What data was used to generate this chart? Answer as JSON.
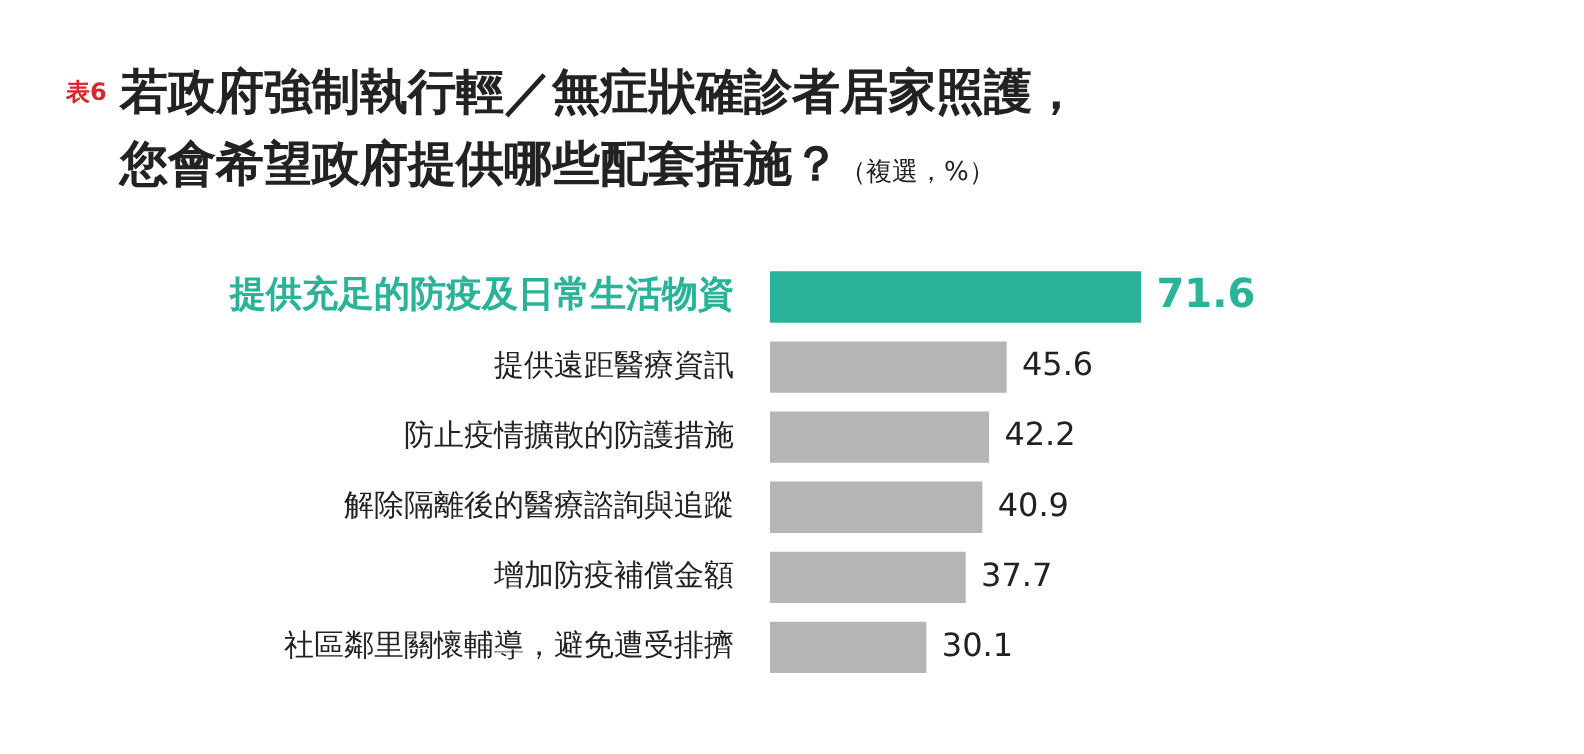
{
  "chart_data": {
    "type": "bar",
    "orientation": "horizontal",
    "title": "若政府強制執行輕／無症狀確診者居家照護，您會希望政府提供哪些配套措施？",
    "subtitle": "（複選，%）",
    "annotations": [
      "表6"
    ],
    "categories": [
      "提供充足的防疫及日常生活物資",
      "提供遠距醫療資訊",
      "防止疫情擴散的防護措施",
      "解除隔離後的醫療諮詢與追蹤",
      "增加防疫補償金額",
      "社區鄰里關懷輔導，避免遭受排擠"
    ],
    "values": [
      71.6,
      45.6,
      42.2,
      40.9,
      37.7,
      30.1
    ],
    "colors": [
      "#2bb39a",
      "#b5b5b5",
      "#b5b5b5",
      "#b5b5b5",
      "#b5b5b5",
      "#b5b5b5"
    ],
    "data_labels": true,
    "legend": false
  }
}
